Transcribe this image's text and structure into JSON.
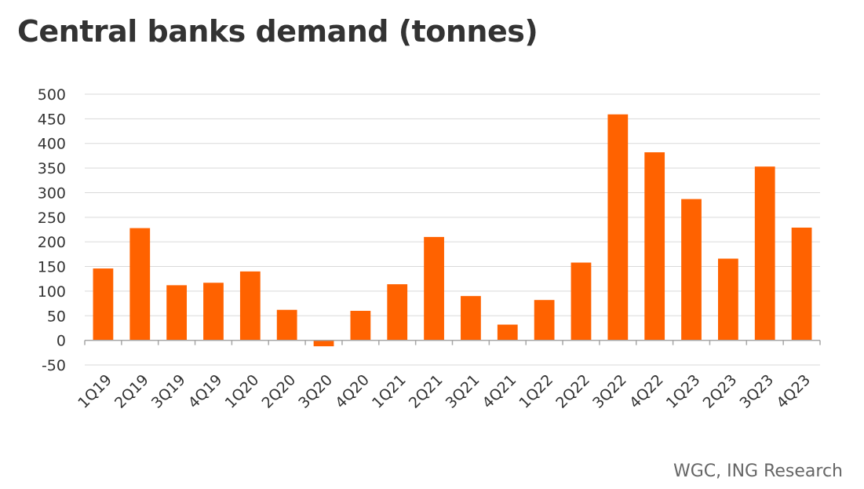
{
  "chart_data": {
    "type": "bar",
    "title": "Central banks demand (tonnes)",
    "source": "WGC, ING Research",
    "categories": [
      "1Q19",
      "2Q19",
      "3Q19",
      "4Q19",
      "1Q20",
      "2Q20",
      "3Q20",
      "4Q20",
      "1Q21",
      "2Q21",
      "3Q21",
      "4Q21",
      "1Q22",
      "2Q22",
      "3Q22",
      "4Q22",
      "1Q23",
      "2Q23",
      "3Q23",
      "4Q23"
    ],
    "values": [
      146,
      228,
      112,
      117,
      140,
      62,
      -12,
      60,
      114,
      210,
      90,
      32,
      82,
      158,
      459,
      382,
      287,
      166,
      353,
      229
    ],
    "ylim": [
      -50,
      500
    ],
    "yticks": [
      -50,
      0,
      50,
      100,
      150,
      200,
      250,
      300,
      350,
      400,
      450,
      500
    ],
    "bar_color": "#ff6200",
    "grid": true
  }
}
